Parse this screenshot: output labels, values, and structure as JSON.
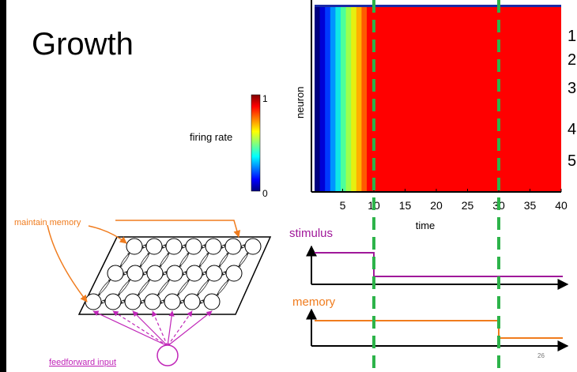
{
  "slide": {
    "title": "Growth",
    "page_number": "26",
    "right_list_numbers": [
      "1",
      "2",
      "3",
      "4",
      "5"
    ]
  },
  "colorbar": {
    "label": "firing rate",
    "max_label": "1",
    "min_label": "0"
  },
  "heatmap": {
    "ylabel": "neuron",
    "xlabel": "time",
    "x_ticks": [
      "5",
      "10",
      "15",
      "20",
      "25",
      "30",
      "35",
      "40"
    ],
    "xlim": [
      0,
      40
    ],
    "stimulus_on": [
      0,
      10
    ],
    "marker_times": [
      10,
      30
    ],
    "ramp_colors": [
      "#00007f",
      "#0000d6",
      "#0038ff",
      "#0094ff",
      "#10e6e6",
      "#4cff9c",
      "#9cff4c",
      "#e6f010",
      "#ffb100",
      "#ff5a00"
    ],
    "saturated_color": "#ff0000",
    "top_edge_color": "#1a2aa6"
  },
  "traces": {
    "stimulus_label": "stimulus",
    "memory_label": "memory",
    "stimulus_color": "#a0189a",
    "memory_color": "#f07c1e",
    "marker_color": "#2db34a"
  },
  "network": {
    "maintain_label": "maintain memory",
    "feedforward_label": "feedforward input",
    "rows": 3,
    "cols": 7,
    "recurrent_color": "#f07c1e",
    "input_color": "#c026b8"
  },
  "chart_data": {
    "type": "heatmap",
    "title": "",
    "xlabel": "time",
    "ylabel": "neuron",
    "xlim": [
      0,
      40
    ],
    "x_ticks": [
      5,
      10,
      15,
      20,
      25,
      30,
      35,
      40
    ],
    "color_scale": {
      "label": "firing rate",
      "min": 0,
      "max": 1
    },
    "description_series": [
      {
        "name": "stimulus",
        "values": [
          [
            0,
            1
          ],
          [
            10,
            1
          ],
          [
            10,
            0
          ],
          [
            40,
            0
          ]
        ]
      },
      {
        "name": "memory",
        "values": [
          [
            0,
            1
          ],
          [
            30,
            1
          ],
          [
            30,
            0
          ],
          [
            40,
            0
          ]
        ]
      }
    ]
  }
}
